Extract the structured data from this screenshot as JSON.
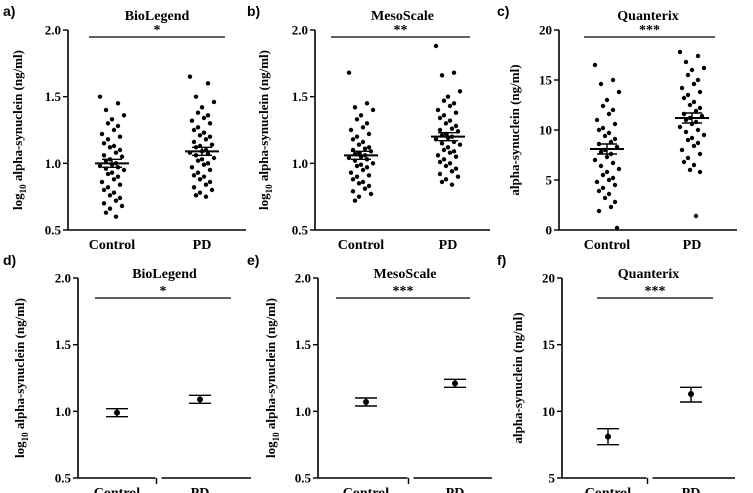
{
  "figure": {
    "panels": [
      {
        "letter": "a)",
        "title": "BioLegend",
        "sig": "*",
        "ylabel_main": "log",
        "ylabel_sub": "10",
        "ylabel_rest": " alpha-synuclein (ng/ml)",
        "yticks": [
          "0.5",
          "1.0",
          "1.5",
          "2.0"
        ]
      },
      {
        "letter": "b)",
        "title": "MesoScale",
        "sig": "**",
        "ylabel_main": "log",
        "ylabel_sub": "10",
        "ylabel_rest": " alpha-synuclein (ng/ml)",
        "yticks": [
          "0.5",
          "1.0",
          "1.5",
          "2.0"
        ]
      },
      {
        "letter": "c)",
        "title": "Quanterix",
        "sig": "***",
        "ylabel_main": "alpha-synuclein (ng/ml)",
        "ylabel_sub": "",
        "ylabel_rest": "",
        "yticks": [
          "0",
          "5",
          "10",
          "15",
          "20"
        ]
      },
      {
        "letter": "d)",
        "title": "BioLegend",
        "sig": "*",
        "ylabel_main": "log",
        "ylabel_sub": "10",
        "ylabel_rest": " alpha-synuclein (ng/ml)",
        "yticks": [
          "0.5",
          "1.0",
          "1.5",
          "2.0"
        ]
      },
      {
        "letter": "e)",
        "title": "MesoScale",
        "sig": "***",
        "ylabel_main": "log",
        "ylabel_sub": "10",
        "ylabel_rest": " alpha-synuclein (ng/ml)",
        "yticks": [
          "0.5",
          "1.0",
          "1.5",
          "2.0"
        ]
      },
      {
        "letter": "f)",
        "title": "Quanterix",
        "sig": "***",
        "ylabel_main": "alpha-synuclein (ng/ml)",
        "ylabel_sub": "",
        "ylabel_rest": "",
        "yticks": [
          "5",
          "10",
          "15",
          "20"
        ]
      }
    ]
  },
  "chart_data": [
    {
      "type": "scatter",
      "panel": "a)",
      "title": "BioLegend",
      "ylabel": "log10 alpha-synuclein (ng/ml)",
      "ylim": [
        0.5,
        2.0
      ],
      "categories": [
        "Control",
        "PD"
      ],
      "significance": "*",
      "series": [
        {
          "name": "Control",
          "mean": 1.0,
          "sem_low": 0.97,
          "sem_high": 1.03,
          "values": [
            1.5,
            1.45,
            1.4,
            1.36,
            1.33,
            1.3,
            1.28,
            1.25,
            1.22,
            1.2,
            1.18,
            1.15,
            1.13,
            1.12,
            1.1,
            1.08,
            1.06,
            1.05,
            1.03,
            1.02,
            1.0,
            0.99,
            0.98,
            0.97,
            0.96,
            0.95,
            0.93,
            0.92,
            0.9,
            0.88,
            0.86,
            0.84,
            0.82,
            0.8,
            0.78,
            0.76,
            0.74,
            0.72,
            0.7,
            0.68,
            0.66,
            0.63,
            0.6
          ]
        },
        {
          "name": "PD",
          "mean": 1.09,
          "sem_low": 1.06,
          "sem_high": 1.12,
          "values": [
            1.65,
            1.6,
            1.5,
            1.46,
            1.42,
            1.38,
            1.36,
            1.34,
            1.32,
            1.3,
            1.27,
            1.25,
            1.23,
            1.21,
            1.2,
            1.18,
            1.16,
            1.14,
            1.13,
            1.12,
            1.1,
            1.09,
            1.08,
            1.07,
            1.06,
            1.04,
            1.03,
            1.02,
            1.0,
            0.99,
            0.97,
            0.95,
            0.93,
            0.91,
            0.9,
            0.88,
            0.86,
            0.84,
            0.82,
            0.8,
            0.78,
            0.76,
            0.75
          ]
        }
      ]
    },
    {
      "type": "scatter",
      "panel": "b)",
      "title": "MesoScale",
      "ylabel": "log10 alpha-synuclein (ng/ml)",
      "ylim": [
        0.5,
        2.0
      ],
      "categories": [
        "Control",
        "PD"
      ],
      "significance": "**",
      "series": [
        {
          "name": "Control",
          "mean": 1.06,
          "sem_low": 1.03,
          "sem_high": 1.09,
          "values": [
            1.68,
            1.45,
            1.42,
            1.4,
            1.36,
            1.33,
            1.3,
            1.27,
            1.25,
            1.22,
            1.2,
            1.18,
            1.16,
            1.14,
            1.12,
            1.11,
            1.1,
            1.09,
            1.08,
            1.07,
            1.06,
            1.05,
            1.04,
            1.03,
            1.02,
            1.0,
            0.99,
            0.98,
            0.97,
            0.95,
            0.93,
            0.91,
            0.9,
            0.88,
            0.86,
            0.85,
            0.83,
            0.81,
            0.79,
            0.77,
            0.75,
            0.72
          ]
        },
        {
          "name": "PD",
          "mean": 1.2,
          "sem_low": 1.17,
          "sem_high": 1.23,
          "values": [
            1.88,
            1.68,
            1.66,
            1.54,
            1.5,
            1.47,
            1.45,
            1.43,
            1.4,
            1.38,
            1.36,
            1.34,
            1.32,
            1.3,
            1.28,
            1.26,
            1.25,
            1.24,
            1.22,
            1.21,
            1.2,
            1.19,
            1.18,
            1.16,
            1.15,
            1.14,
            1.12,
            1.1,
            1.09,
            1.08,
            1.06,
            1.05,
            1.03,
            1.01,
            1.0,
            0.98,
            0.96,
            0.94,
            0.92,
            0.9,
            0.88,
            0.86,
            0.84
          ]
        }
      ]
    },
    {
      "type": "scatter",
      "panel": "c)",
      "title": "Quanterix",
      "ylabel": "alpha-synuclein (ng/ml)",
      "ylim": [
        0,
        20
      ],
      "categories": [
        "Control",
        "PD"
      ],
      "significance": "***",
      "series": [
        {
          "name": "Control",
          "mean": 8.1,
          "sem_low": 7.6,
          "sem_high": 8.6,
          "values": [
            16.5,
            15.0,
            14.6,
            13.8,
            13.0,
            12.4,
            12.0,
            11.6,
            11.0,
            10.6,
            10.2,
            10.0,
            9.7,
            9.4,
            9.1,
            8.8,
            8.6,
            8.3,
            8.0,
            7.8,
            7.6,
            7.3,
            7.0,
            6.7,
            6.4,
            6.1,
            5.8,
            5.5,
            5.2,
            5.0,
            4.8,
            4.5,
            4.2,
            3.9,
            3.6,
            3.2,
            2.8,
            2.3,
            1.9,
            0.2
          ]
        },
        {
          "name": "PD",
          "mean": 11.2,
          "sem_low": 10.7,
          "sem_high": 11.7,
          "values": [
            17.8,
            17.4,
            16.8,
            16.2,
            16.0,
            15.5,
            15.0,
            14.6,
            14.2,
            13.8,
            13.5,
            13.2,
            12.8,
            12.5,
            12.2,
            11.9,
            11.6,
            11.4,
            11.2,
            11.0,
            10.8,
            10.6,
            10.3,
            10.0,
            9.8,
            9.5,
            9.2,
            9.0,
            8.7,
            8.4,
            8.0,
            7.6,
            7.2,
            6.8,
            6.5,
            6.0,
            5.8,
            1.4
          ]
        }
      ]
    },
    {
      "type": "scatter",
      "panel": "d)",
      "title": "BioLegend",
      "ylabel": "log10 alpha-synuclein (ng/ml)",
      "ylim": [
        0.5,
        2.0
      ],
      "categories": [
        "Control",
        "PD"
      ],
      "significance": "*",
      "series": [
        {
          "name": "Control",
          "mean": 0.99,
          "sem_low": 0.96,
          "sem_high": 1.02,
          "values": []
        },
        {
          "name": "PD",
          "mean": 1.09,
          "sem_low": 1.06,
          "sem_high": 1.12,
          "values": []
        }
      ]
    },
    {
      "type": "scatter",
      "panel": "e)",
      "title": "MesoScale",
      "ylabel": "log10 alpha-synuclein (ng/ml)",
      "ylim": [
        0.5,
        2.0
      ],
      "categories": [
        "Control",
        "PD"
      ],
      "significance": "***",
      "series": [
        {
          "name": "Control",
          "mean": 1.07,
          "sem_low": 1.04,
          "sem_high": 1.1,
          "values": []
        },
        {
          "name": "PD",
          "mean": 1.21,
          "sem_low": 1.18,
          "sem_high": 1.24,
          "values": []
        }
      ]
    },
    {
      "type": "scatter",
      "panel": "f)",
      "title": "Quanterix",
      "ylabel": "alpha-synuclein (ng/ml)",
      "ylim": [
        5,
        20
      ],
      "categories": [
        "Control",
        "PD"
      ],
      "significance": "***",
      "series": [
        {
          "name": "Control",
          "mean": 8.1,
          "sem_low": 7.5,
          "sem_high": 8.7,
          "values": []
        },
        {
          "name": "PD",
          "mean": 11.3,
          "sem_low": 10.7,
          "sem_high": 11.8,
          "values": []
        }
      ]
    }
  ]
}
